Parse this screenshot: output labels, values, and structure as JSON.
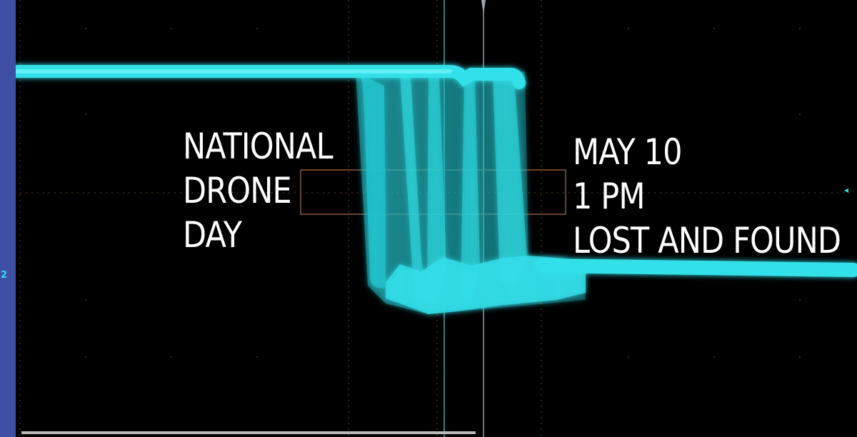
{
  "poster": {
    "left_lines": [
      "NATIONAL",
      "DRONE",
      "DAY"
    ],
    "right_lines": [
      "MAY 10",
      "1 PM",
      "LOST AND FOUND"
    ]
  },
  "scope": {
    "channel_marker": "2",
    "right_marker": "◂",
    "trace_color": "#33e0ea",
    "grid_color": "#8a5a3a",
    "side_bar_color": "#3f4fa6"
  }
}
